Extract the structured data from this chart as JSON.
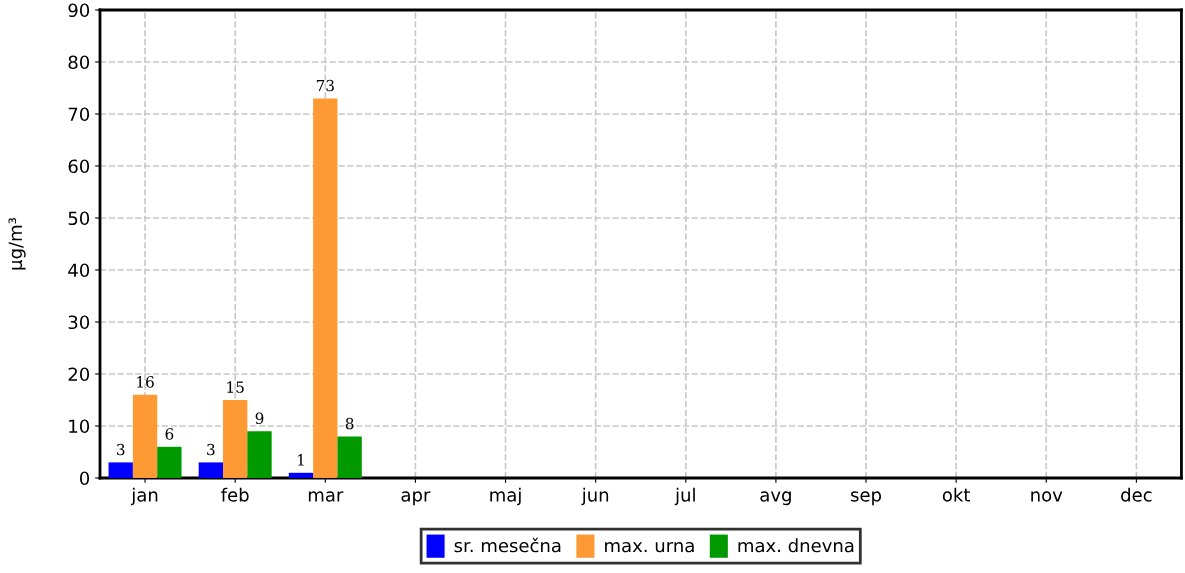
{
  "chart_data": {
    "type": "bar",
    "ylabel": "µg/m³",
    "categories": [
      "jan",
      "feb",
      "mar",
      "apr",
      "maj",
      "jun",
      "jul",
      "avg",
      "sep",
      "okt",
      "nov",
      "dec"
    ],
    "series": [
      {
        "name": "sr. mesečna",
        "color": "#0000ff",
        "values": [
          3,
          3,
          1,
          null,
          null,
          null,
          null,
          null,
          null,
          null,
          null,
          null
        ]
      },
      {
        "name": "max. urna",
        "color": "#ff9933",
        "values": [
          16,
          15,
          73,
          null,
          null,
          null,
          null,
          null,
          null,
          null,
          null,
          null
        ]
      },
      {
        "name": "max. dnevna",
        "color": "#009900",
        "values": [
          6,
          9,
          8,
          null,
          null,
          null,
          null,
          null,
          null,
          null,
          null,
          null
        ]
      }
    ],
    "ylim": [
      0,
      90
    ],
    "yticks": [
      0,
      10,
      20,
      30,
      40,
      50,
      60,
      70,
      80,
      90
    ],
    "grid": true,
    "legend": "bottom",
    "data_labels": true
  }
}
